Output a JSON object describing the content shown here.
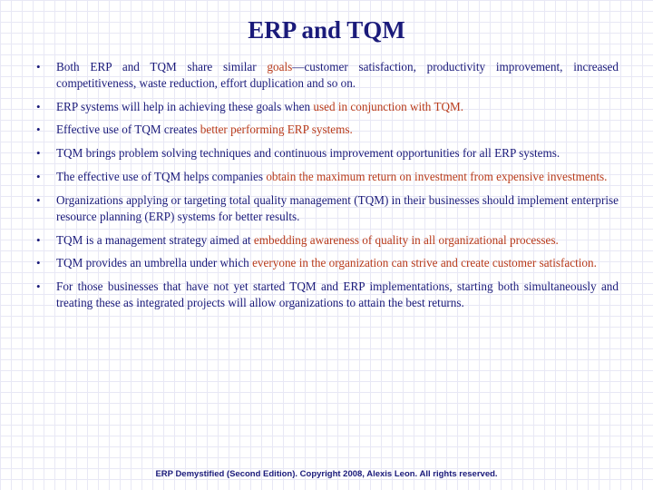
{
  "title": "ERP and TQM",
  "title_color": "#1a1a7a",
  "title_fontsize": 27,
  "body_color": "#1a1a7a",
  "emphasis_color": "#b83a1a",
  "body_fontsize": 13.2,
  "background_color": "#ffffff",
  "grid_color": "#e8e8f5",
  "grid_size": 12,
  "bullets": [
    {
      "segments": [
        {
          "t": "Both ERP and TQM share similar ",
          "e": false
        },
        {
          "t": "goals",
          "e": true
        },
        {
          "t": "—customer satisfaction, productivity improvement, increased competitiveness, waste reduction, effort duplication and so on.",
          "e": false
        }
      ]
    },
    {
      "segments": [
        {
          "t": "ERP systems will help in achieving these goals when ",
          "e": false
        },
        {
          "t": "used in conjunction with TQM.",
          "e": true
        }
      ]
    },
    {
      "segments": [
        {
          "t": " Effective use of TQM creates ",
          "e": false
        },
        {
          "t": "better performing ERP systems.",
          "e": true
        }
      ]
    },
    {
      "segments": [
        {
          "t": "TQM brings problem solving techniques and continuous improvement opportunities for all ERP systems.",
          "e": false
        }
      ]
    },
    {
      "segments": [
        {
          "t": "The effective use of TQM helps companies ",
          "e": false
        },
        {
          "t": "obtain the maximum return on investment from expensive investments.",
          "e": true
        }
      ]
    },
    {
      "segments": [
        {
          "t": "Organizations applying or targeting total quality management (TQM) in their businesses should implement enterprise resource planning (ERP) systems for better results.",
          "e": false
        }
      ]
    },
    {
      "segments": [
        {
          "t": "TQM is a management strategy aimed at ",
          "e": false
        },
        {
          "t": "embedding awareness of quality in all organizational processes.",
          "e": true
        }
      ]
    },
    {
      "segments": [
        {
          "t": "TQM provides an umbrella under which ",
          "e": false
        },
        {
          "t": "everyone in the organization can strive and create customer satisfaction.",
          "e": true
        }
      ]
    },
    {
      "segments": [
        {
          "t": "For those businesses that have not yet started TQM and ERP implementations, starting both simultaneously and treating these as integrated projects will allow organizations to attain the best returns.",
          "e": false
        }
      ]
    }
  ],
  "footer": "ERP Demystified (Second Edition). Copyright 2008, Alexis Leon. All rights reserved.",
  "footer_fontsize": 9.5
}
